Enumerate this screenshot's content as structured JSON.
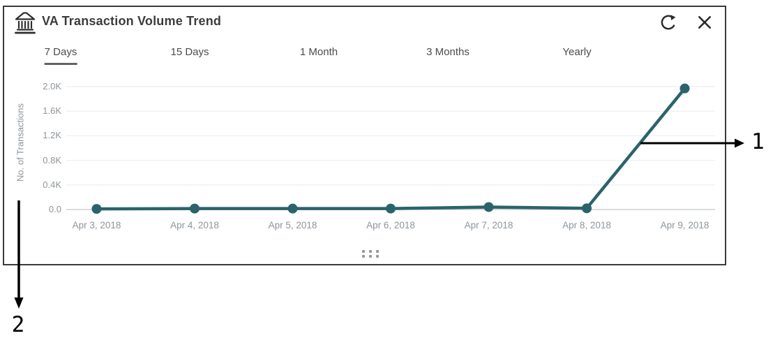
{
  "panel": {
    "title": "VA Transaction Volume Trend",
    "icons": {
      "bank": "bank-building-icon",
      "refresh": "refresh-icon",
      "close": "close-icon",
      "drag_handle": "drag-handle-dots"
    }
  },
  "tabs": [
    {
      "label": "7 Days",
      "selected": true
    },
    {
      "label": "15 Days",
      "selected": false
    },
    {
      "label": "1 Month",
      "selected": false
    },
    {
      "label": "3 Months",
      "selected": false
    },
    {
      "label": "Yearly",
      "selected": false
    }
  ],
  "chart_data": {
    "type": "line",
    "title": "VA Transaction Volume Trend",
    "x": [
      "Apr 3, 2018",
      "Apr 4, 2018",
      "Apr 5, 2018",
      "Apr 6, 2018",
      "Apr 7, 2018",
      "Apr 8, 2018",
      "Apr 9, 2018"
    ],
    "series": [
      {
        "name": "No. of Transactions",
        "values": [
          10,
          15,
          15,
          15,
          40,
          20,
          1970
        ]
      }
    ],
    "xlabel": "",
    "ylabel": "No. of Transactions",
    "ytick_labels": [
      "0.0",
      "0.4K",
      "0.8K",
      "1.2K",
      "1.6K",
      "2.0K"
    ],
    "ytick_values": [
      0,
      400,
      800,
      1200,
      1600,
      2000
    ],
    "ylim": [
      0,
      2000
    ],
    "grid": true,
    "legend": "none",
    "line_color": "#2b636b",
    "marker": "circle"
  },
  "annotations": [
    {
      "label": "1",
      "direction": "right"
    },
    {
      "label": "2",
      "direction": "down"
    }
  ],
  "colors": {
    "accent_teal": "#2b636b",
    "grid_line": "#eef1f3",
    "axis_line": "#c3c7ca",
    "axis_text": "#8e959b",
    "tab_text": "#4b4b4b",
    "title_text": "#3c3c3c",
    "panel_border": "#3b3b3b",
    "annotation": "#000000"
  }
}
